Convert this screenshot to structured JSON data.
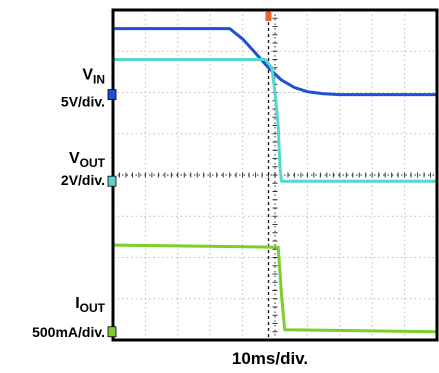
{
  "chart_data": {
    "type": "line",
    "title": "",
    "x_scale_label": "10ms/div.",
    "grid": true,
    "x_divisions": 10,
    "y_divisions": 8,
    "xlim": [
      0,
      10
    ],
    "ylim": [
      0,
      8
    ],
    "trigger_marker": {
      "x": 4.8,
      "color": "#e8623a"
    },
    "series": [
      {
        "id": "vin",
        "label_main": "V",
        "label_sub": "IN",
        "scale": "5V/div.",
        "color": "#1f4fd8",
        "marker_level": 5.95,
        "x": [
          0,
          3.6,
          4.0,
          4.4,
          4.8,
          5.2,
          5.6,
          6.0,
          6.5,
          7.0,
          10
        ],
        "y": [
          7.55,
          7.55,
          7.3,
          6.95,
          6.6,
          6.3,
          6.12,
          6.02,
          5.97,
          5.95,
          5.95
        ]
      },
      {
        "id": "vout",
        "label_main": "V",
        "label_sub": "OUT",
        "scale": "2V/div.",
        "color": "#57d6d0",
        "marker_level": 3.85,
        "x": [
          0,
          4.7,
          4.9,
          5.0,
          5.1,
          5.15,
          5.2,
          10
        ],
        "y": [
          6.8,
          6.8,
          6.6,
          6.0,
          5.2,
          4.2,
          3.85,
          3.85
        ]
      },
      {
        "id": "iout",
        "label_main": "I",
        "label_sub": "OUT",
        "scale": "500mA/div.",
        "color": "#7ccf2a",
        "marker_level": 0.2,
        "x": [
          0,
          5.1,
          5.2,
          5.3,
          10
        ],
        "y": [
          2.3,
          2.25,
          1.1,
          0.25,
          0.2
        ]
      }
    ]
  }
}
